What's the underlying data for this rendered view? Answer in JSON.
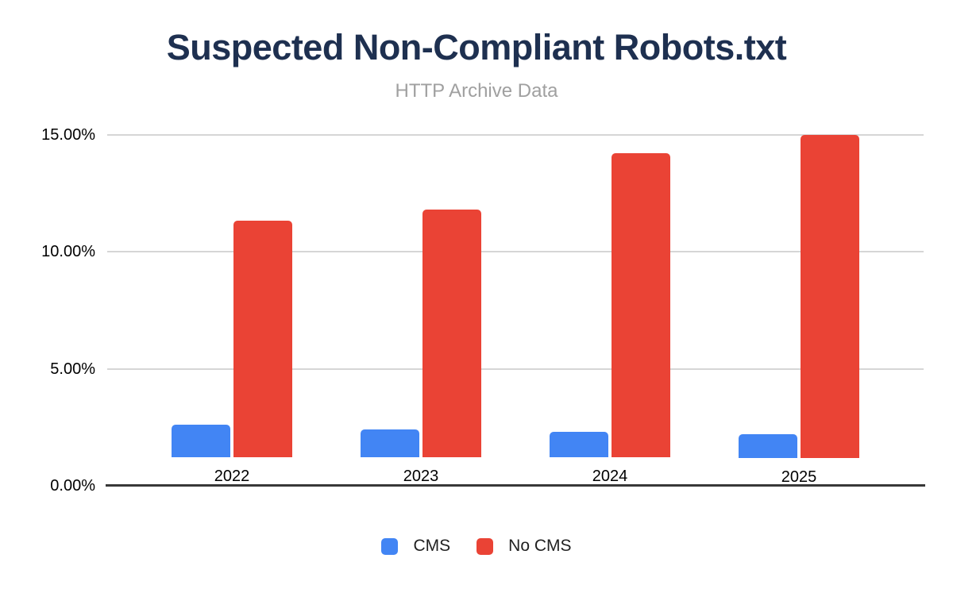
{
  "chart_data": {
    "type": "bar",
    "title": "Suspected Non-Compliant Robots.txt",
    "subtitle": "HTTP Archive Data",
    "categories": [
      "2022",
      "2023",
      "2024",
      "2025"
    ],
    "series": [
      {
        "name": "CMS",
        "color": "#4285f4",
        "values": [
          1.4,
          1.2,
          1.1,
          1.0
        ]
      },
      {
        "name": "No CMS",
        "color": "#ea4335",
        "values": [
          10.1,
          10.6,
          13.0,
          13.8
        ]
      }
    ],
    "value_unit": "percent",
    "y_ticks": [
      "0.00%",
      "5.00%",
      "10.00%",
      "15.00%"
    ],
    "y_tick_values": [
      0,
      5,
      10,
      15
    ],
    "ylim": [
      0,
      15
    ],
    "grid": true,
    "legend_position": "bottom"
  },
  "colors": {
    "background": "#ffffff",
    "title_text": "#1e3050",
    "subtitle_text": "#a0a0a0",
    "grid_line": "#d6d6d6",
    "axis_line": "#383838",
    "tick_text": "#000000",
    "legend_text": "#212121"
  }
}
